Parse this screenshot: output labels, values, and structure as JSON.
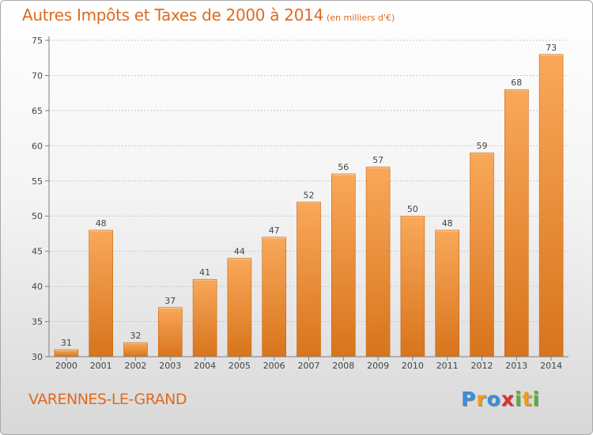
{
  "title": "Autres Impôts et Taxes de 2000 à 2014",
  "unit_label": "(en milliers d'€)",
  "location": "VARENNES-LE-GRAND",
  "logo": {
    "text": "Proxiti",
    "letters": [
      {
        "char": "P",
        "color": "#3a8fd8"
      },
      {
        "char": "r",
        "color": "#e8a11a"
      },
      {
        "char": "o",
        "color": "#3a8fd8"
      },
      {
        "char": "x",
        "color": "#d8342c"
      },
      {
        "char": "i",
        "color": "#5cb030"
      },
      {
        "char": "t",
        "color": "#e8a11a"
      },
      {
        "char": "i",
        "color": "#5cb030"
      }
    ]
  },
  "colors": {
    "bar_top": "#f9a85a",
    "bar_bottom": "#d8741c",
    "bar_edge": "#c86812",
    "title": "#e06a1e",
    "grid": "#c8c8c8",
    "axis": "#808080"
  },
  "chart_data": {
    "type": "bar",
    "categories": [
      "2000",
      "2001",
      "2002",
      "2003",
      "2004",
      "2005",
      "2006",
      "2007",
      "2008",
      "2009",
      "2010",
      "2011",
      "2012",
      "2013",
      "2014"
    ],
    "values": [
      31,
      48,
      32,
      37,
      41,
      44,
      47,
      52,
      56,
      57,
      50,
      48,
      59,
      68,
      73
    ],
    "title": "Autres Impôts et Taxes de 2000 à 2014",
    "subtitle": "(en milliers d'€)",
    "xlabel": "",
    "ylabel": "",
    "ylim": [
      30,
      75
    ],
    "yticks": [
      30,
      35,
      40,
      45,
      50,
      55,
      60,
      65,
      70,
      75
    ],
    "grid": true,
    "data_labels": true
  }
}
